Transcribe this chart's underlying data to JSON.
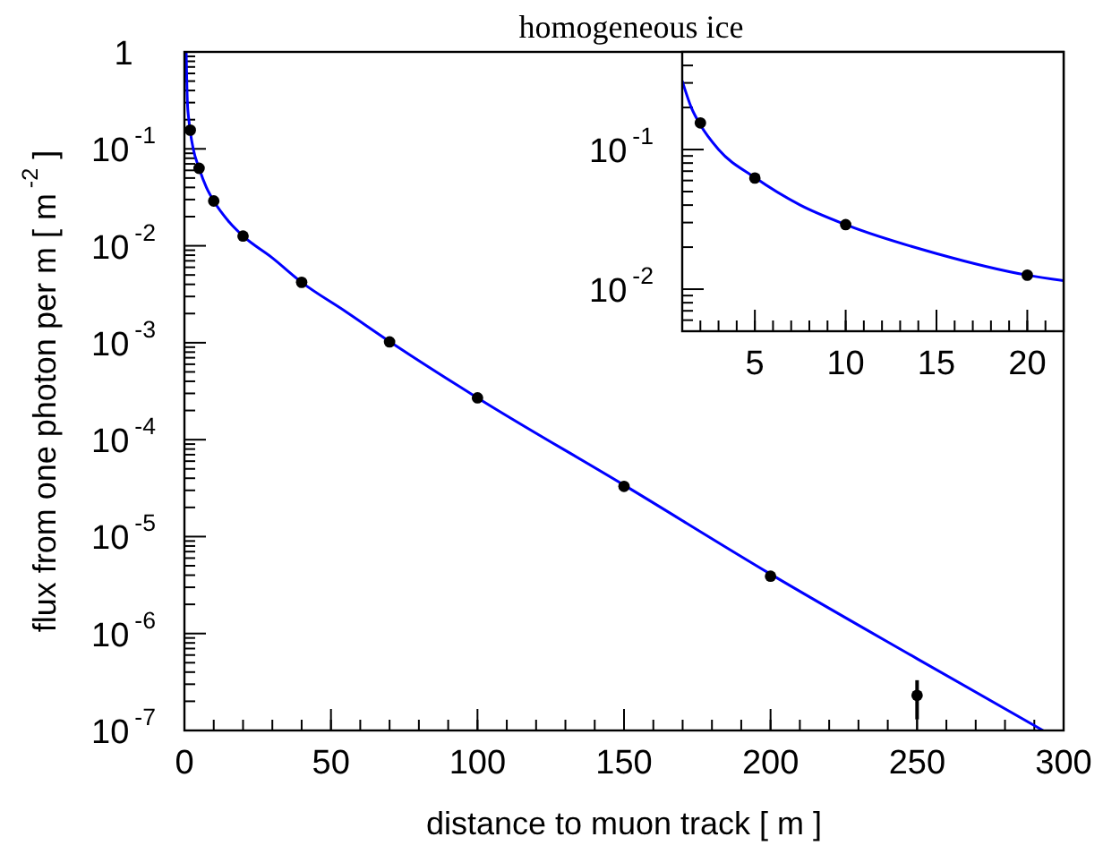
{
  "chart_data": [
    {
      "type": "scatter",
      "title": "homogeneous ice",
      "xlabel": "distance to muon track [ m ]",
      "ylabel": "flux from one photon per m [ m$^{-2}$ ]",
      "log": "y",
      "xlim": [
        0,
        300
      ],
      "xticks": [
        0,
        50,
        100,
        150,
        200,
        250,
        300
      ],
      "ylim": [
        1e-07,
        1
      ],
      "yticks": [
        {
          "value": 1e-07,
          "label": "10$^{-7}$"
        },
        {
          "value": 1e-06,
          "label": "10$^{-6}$"
        },
        {
          "value": 1e-05,
          "label": "10$^{-5}$"
        },
        {
          "value": 0.0001,
          "label": "10$^{-4}$"
        },
        {
          "value": 0.001,
          "label": "10$^{-3}$"
        },
        {
          "value": 0.01,
          "label": "10$^{-2}$"
        },
        {
          "value": 0.1,
          "label": "10$^{-1}$"
        },
        1
      ],
      "series": [
        {
          "type": "line",
          "color": "#0000ff",
          "x": [
            0.6,
            1,
            1.5,
            2,
            3,
            5,
            7.5,
            10,
            15,
            20,
            30,
            40,
            55,
            70,
            100,
            150,
            200,
            250,
            293
          ],
          "values": [
            1,
            0.31,
            0.2,
            0.15,
            0.1,
            0.063,
            0.04,
            0.029,
            0.018,
            0.0126,
            0.0075,
            0.0042,
            0.0021,
            0.00103,
            0.00027,
            3.4e-05,
            4.1e-06,
            5.5e-07,
            1e-07
          ]
        },
        {
          "type": "scatter",
          "color": "#000000",
          "marker": "circle",
          "x": [
            2,
            5,
            10,
            20,
            40,
            70,
            100,
            150,
            200,
            250
          ],
          "values": [
            0.156,
            0.063,
            0.029,
            0.0126,
            0.0042,
            0.00102,
            0.00027,
            3.3e-05,
            3.9e-06,
            2.3e-07
          ],
          "errors": [
            null,
            null,
            null,
            null,
            null,
            null,
            null,
            null,
            null,
            [
              1.3e-07,
              3.3e-07
            ]
          ]
        }
      ]
    },
    {
      "type": "scatter",
      "log": "y",
      "xlim": [
        1,
        22
      ],
      "xticks": [
        5,
        10,
        15,
        20
      ],
      "ylim": [
        0.005,
        0.5
      ],
      "yticks": [
        {
          "value": 0.01,
          "label": "10$^{-2}$"
        },
        {
          "value": 0.1,
          "label": "10$^{-1}$"
        }
      ],
      "series": [
        {
          "type": "line",
          "color": "#0000ff",
          "x": [
            1,
            1.5,
            2,
            3,
            5,
            7.5,
            10,
            15,
            20,
            22
          ],
          "values": [
            0.31,
            0.2,
            0.15,
            0.1,
            0.063,
            0.04,
            0.029,
            0.018,
            0.0126,
            0.0115
          ]
        },
        {
          "type": "scatter",
          "color": "#000000",
          "marker": "circle",
          "x": [
            2,
            5,
            10,
            20
          ],
          "values": [
            0.155,
            0.0625,
            0.029,
            0.0126
          ]
        }
      ]
    }
  ]
}
